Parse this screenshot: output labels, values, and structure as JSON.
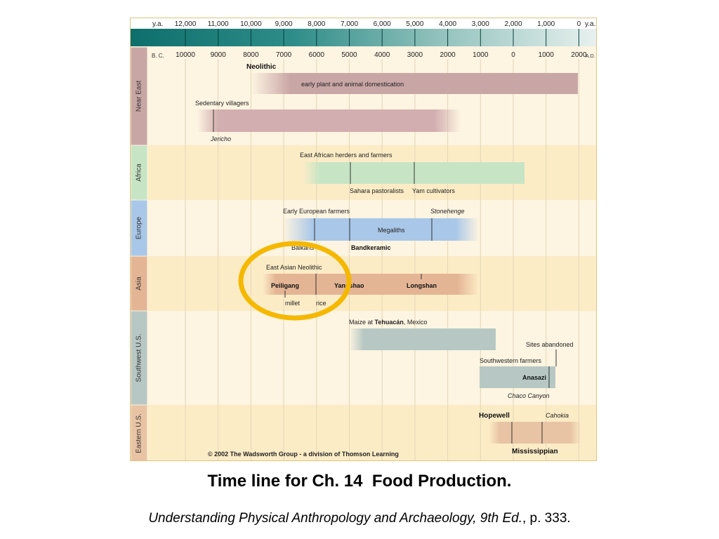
{
  "colors": {
    "accent_highlight": "#f5b800",
    "band_near_east": "#c9a6a6",
    "band_africa": "#c7e5c5",
    "band_europe": "#a9c7e8",
    "band_asia": "#e4b595",
    "band_southwest": "#b7c8c4",
    "band_eastern": "#e8c4a4"
  },
  "axis": {
    "ya_label_left": "y.a.",
    "ya_label_right": "y.a.",
    "ya_ticks": [
      "12,000",
      "11,000",
      "10,000",
      "9,000",
      "8,000",
      "7,000",
      "6,000",
      "5,000",
      "4,000",
      "3,000",
      "2,000",
      "1,000",
      "0"
    ],
    "bc_label": "B. C.",
    "ad_label": "A.D.",
    "date_ticks": [
      "10000",
      "9000",
      "8000",
      "7000",
      "6000",
      "5000",
      "4000",
      "3000",
      "2000",
      "1000",
      "0",
      "1000",
      "2000"
    ]
  },
  "regions": [
    {
      "label": "Near East",
      "color": "#c9a6a6"
    },
    {
      "label": "Africa",
      "color": "#c7e5c5"
    },
    {
      "label": "Europe",
      "color": "#a9c7e8"
    },
    {
      "label": "Asia",
      "color": "#e4b595"
    },
    {
      "label": "Southwest U.S.",
      "color": "#b7c8c4"
    },
    {
      "label": "Eastern U.S.",
      "color": "#e8c4a4"
    }
  ],
  "labels": {
    "neolithic": "Neolithic",
    "early_domestication": "early plant and animal domestication",
    "sedentary_villagers": "Sedentary villagers",
    "jericho": "Jericho",
    "east_african": "East African herders and farmers",
    "sahara": "Sahara pastoralists",
    "yam": "Yam cultivators",
    "early_european": "Early European farmers",
    "stonehenge": "Stonehenge",
    "megaliths": "Megaliths",
    "balkans": "Balkans",
    "bandkeramic": "Bandkeramic",
    "east_asian": "East Asian Neolithic",
    "peiligang": "Peiligang",
    "yangshao": "Yangshao",
    "longshan": "Longshan",
    "millet": "millet",
    "rice": "rice",
    "maize_prefix": "Maize at ",
    "maize_place": "Tehuacán",
    "maize_suffix": ", Mexico",
    "sites_abandoned": "Sites abandoned",
    "southwestern_farmers": "Southwestern farmers",
    "anasazi": "Anasazi",
    "chaco": "Chaco Canyon",
    "hopewell": "Hopewell",
    "cahokia": "Cahokia",
    "mississippian": "Mississippian",
    "copyright": "© 2002 The Wadsworth Group - a division of Thomson Learning"
  },
  "title": "Time line for Ch. 14  Food Production.",
  "caption": {
    "book": "Understanding Physical Anthropology and Archaeology, 9th Ed.",
    "page": ", p. 333."
  }
}
